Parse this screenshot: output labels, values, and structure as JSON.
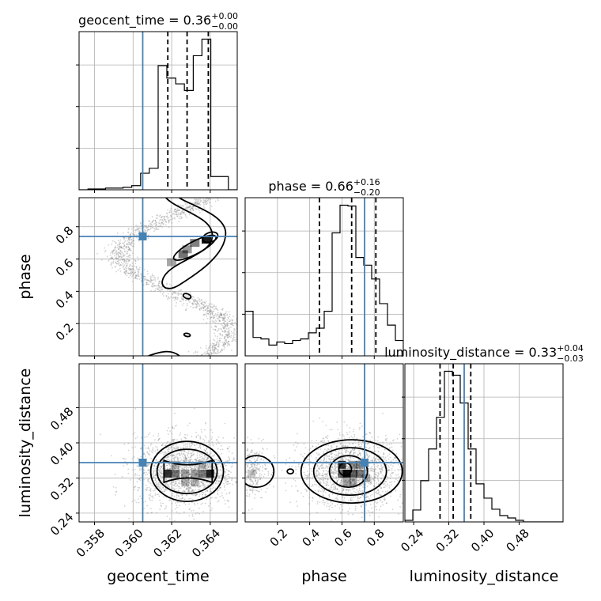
{
  "colors": {
    "truth": "#4682b4",
    "histogram": "#000000",
    "quantile": "#000000",
    "grid": "#b0b0b0",
    "scatter": "#808080",
    "density_dark": "#000000"
  },
  "chart_data": {
    "type": "corner",
    "parameters": [
      "geocent_time",
      "phase",
      "luminosity_distance"
    ],
    "truths": {
      "geocent_time": 0.3605,
      "phase": 0.74,
      "luminosity_distance": 0.355
    },
    "titles": [
      {
        "param": "geocent_time",
        "main": "geocent_time = 0.36",
        "sup": "+0.00",
        "sub": "−0.00"
      },
      {
        "param": "phase",
        "main": "phase = 0.66",
        "sup": "+0.16",
        "sub": "−0.20"
      },
      {
        "param": "luminosity_distance",
        "main": "luminosity_distance = 0.33",
        "sup": "+0.04",
        "sub": "−0.03"
      }
    ],
    "axis_labels": {
      "geocent_time": "geocent_time",
      "phase": "phase",
      "luminosity_distance": "luminosity_distance"
    },
    "ranges": {
      "geocent_time": [
        0.3572,
        0.3654
      ],
      "phase": [
        0.0,
        0.98
      ],
      "luminosity_distance": [
        0.22,
        0.58
      ]
    },
    "ticks": {
      "geocent_time": {
        "values": [
          0.358,
          0.36,
          0.362,
          0.364
        ],
        "labels": [
          "0.358",
          "0.360",
          "0.362",
          "0.364"
        ]
      },
      "phase": {
        "values": [
          0.2,
          0.4,
          0.6,
          0.8
        ],
        "labels": [
          "0.2",
          "0.4",
          "0.6",
          "0.8"
        ]
      },
      "luminosity_distance": {
        "values": [
          0.24,
          0.32,
          0.4,
          0.48
        ],
        "labels": [
          "0.24",
          "0.32",
          "0.40",
          "0.48"
        ]
      }
    },
    "quantiles": {
      "geocent_time": [
        0.3618,
        0.3628,
        0.3639
      ],
      "phase": [
        0.46,
        0.66,
        0.81
      ],
      "luminosity_distance": [
        0.3,
        0.33,
        0.37
      ]
    },
    "histograms": {
      "geocent_time": {
        "edges": [
          0.3572,
          0.35766,
          0.35811,
          0.35857,
          0.35902,
          0.35948,
          0.35993,
          0.36039,
          0.36084,
          0.3613,
          0.36175,
          0.36221,
          0.36266,
          0.36312,
          0.36357,
          0.36403,
          0.36448,
          0.36494,
          0.3654
        ],
        "counts": [
          0,
          1,
          1,
          2,
          2,
          3,
          5,
          20,
          26,
          150,
          135,
          128,
          120,
          162,
          182,
          16,
          16,
          0
        ]
      },
      "phase": {
        "edges": [
          0.0,
          0.049,
          0.098,
          0.147,
          0.196,
          0.245,
          0.294,
          0.343,
          0.392,
          0.441,
          0.49,
          0.539,
          0.588,
          0.637,
          0.686,
          0.735,
          0.784,
          0.833,
          0.882,
          0.931,
          0.98
        ],
        "counts": [
          58,
          24,
          22,
          14,
          18,
          16,
          20,
          22,
          30,
          36,
          58,
          160,
          196,
          195,
          128,
          118,
          100,
          68,
          40,
          20
        ]
      },
      "luminosity_distance": {
        "edges": [
          0.22,
          0.238,
          0.256,
          0.274,
          0.292,
          0.31,
          0.328,
          0.346,
          0.364,
          0.382,
          0.4,
          0.418,
          0.436,
          0.454,
          0.472,
          0.49,
          0.508,
          0.526,
          0.544,
          0.562,
          0.58
        ],
        "counts": [
          2,
          15,
          52,
          92,
          132,
          190,
          185,
          150,
          92,
          48,
          30,
          16,
          8,
          5,
          2,
          0,
          0,
          0,
          0,
          0
        ]
      }
    },
    "grid": true
  }
}
